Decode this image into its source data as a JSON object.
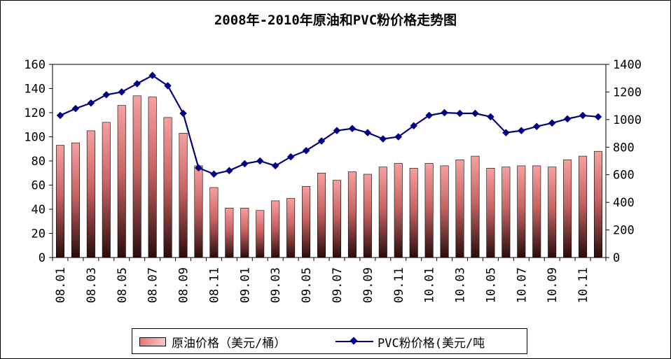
{
  "chart_data": {
    "type": "bar+line",
    "title": "2008年-2010年原油和PVC粉价格走势图",
    "categories": [
      "08.01",
      "08.02",
      "08.03",
      "08.04",
      "08.05",
      "08.06",
      "08.07",
      "08.08",
      "08.09",
      "08.10",
      "08.11",
      "08.12",
      "09.01",
      "09.02",
      "09.03",
      "09.04",
      "09.05",
      "09.06",
      "09.07",
      "09.08",
      "09.09",
      "09.10",
      "09.11",
      "09.12",
      "10.01",
      "10.02",
      "10.03",
      "10.04",
      "10.05",
      "10.06",
      "10.07",
      "10.08",
      "10.09",
      "10.10",
      "10.11",
      "10.12"
    ],
    "visible_tick_labels": [
      "08.01",
      "08.03",
      "08.05",
      "08.07",
      "08.09",
      "08.11",
      "09.01",
      "09.03",
      "09.05",
      "09.07",
      "09.09",
      "09.11",
      "10.01",
      "10.03",
      "10.05",
      "10.07",
      "10.09",
      "10.11"
    ],
    "series": [
      {
        "name": "原油价格（美元/桶）",
        "type": "bar",
        "axis": "left",
        "color": "#e87878",
        "values": [
          93,
          95,
          105,
          112,
          126,
          134,
          133,
          116,
          103,
          76,
          58,
          41,
          41,
          39,
          47,
          49,
          59,
          70,
          64,
          71,
          69,
          75,
          78,
          74,
          78,
          76,
          81,
          84,
          74,
          75,
          76,
          76,
          75,
          81,
          84,
          88
        ]
      },
      {
        "name": "PVC粉价格(美元/吨",
        "type": "line",
        "axis": "right",
        "color": "#000080",
        "values": [
          1030,
          1080,
          1120,
          1180,
          1200,
          1260,
          1320,
          1245,
          1045,
          650,
          605,
          630,
          680,
          700,
          665,
          730,
          775,
          845,
          920,
          935,
          905,
          860,
          875,
          955,
          1030,
          1050,
          1045,
          1045,
          1020,
          905,
          920,
          950,
          975,
          1005,
          1030,
          1020
        ]
      }
    ],
    "yaxis_left": {
      "min": 0,
      "max": 160,
      "ticks": [
        "0",
        "20",
        "40",
        "60",
        "80",
        "100",
        "120",
        "140",
        "160"
      ]
    },
    "yaxis_right": {
      "min": 0,
      "max": 1400,
      "ticks": [
        "0",
        "200",
        "400",
        "600",
        "800",
        "1000",
        "1200",
        "1400"
      ]
    },
    "grid": false,
    "legend_position": "bottom"
  }
}
